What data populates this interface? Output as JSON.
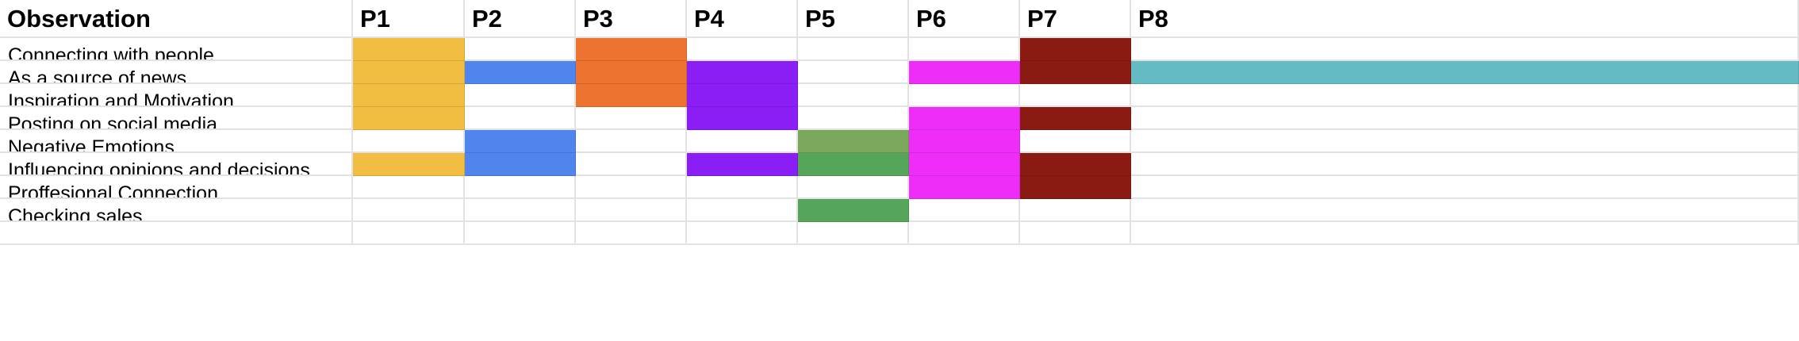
{
  "header": {
    "title": "Observation",
    "participants": [
      "P1",
      "P2",
      "P3",
      "P4",
      "P5",
      "P6",
      "P7",
      "P8"
    ]
  },
  "rows": [
    {
      "label": "Connecting with people",
      "fills": [
        0,
        null,
        2,
        null,
        null,
        null,
        6,
        null
      ]
    },
    {
      "label": "As a source of news",
      "fills": [
        0,
        1,
        2,
        3,
        null,
        5,
        6,
        7
      ]
    },
    {
      "label": "Inspiration and Motivation",
      "fills": [
        0,
        null,
        2,
        3,
        null,
        null,
        null,
        null
      ]
    },
    {
      "label": "Posting on social media",
      "fills": [
        0,
        null,
        null,
        3,
        null,
        5,
        6,
        null
      ]
    },
    {
      "label": "Negative Emotions",
      "fills": [
        null,
        1,
        null,
        null,
        4,
        5,
        null,
        null
      ]
    },
    {
      "label": "Influencing opinions and decisions",
      "fills": [
        0,
        1,
        null,
        3,
        4,
        5,
        6,
        null
      ]
    },
    {
      "label": "Proffesional Connection",
      "fills": [
        null,
        null,
        null,
        null,
        null,
        5,
        6,
        null
      ]
    },
    {
      "label": "Checking sales",
      "fills": [
        null,
        null,
        null,
        null,
        4,
        null,
        null,
        null
      ]
    },
    {
      "label": "",
      "fills": [
        null,
        null,
        null,
        null,
        null,
        null,
        null,
        null
      ]
    }
  ],
  "colors": {
    "participant": [
      "#f1be42",
      "#5085ed",
      "#ed7330",
      "#8a1ef5",
      "#55a55b",
      "#ee2ef8",
      "#8b1a12",
      "#65bbc3"
    ],
    "negative_emotions_p5": "#7aa75c"
  }
}
